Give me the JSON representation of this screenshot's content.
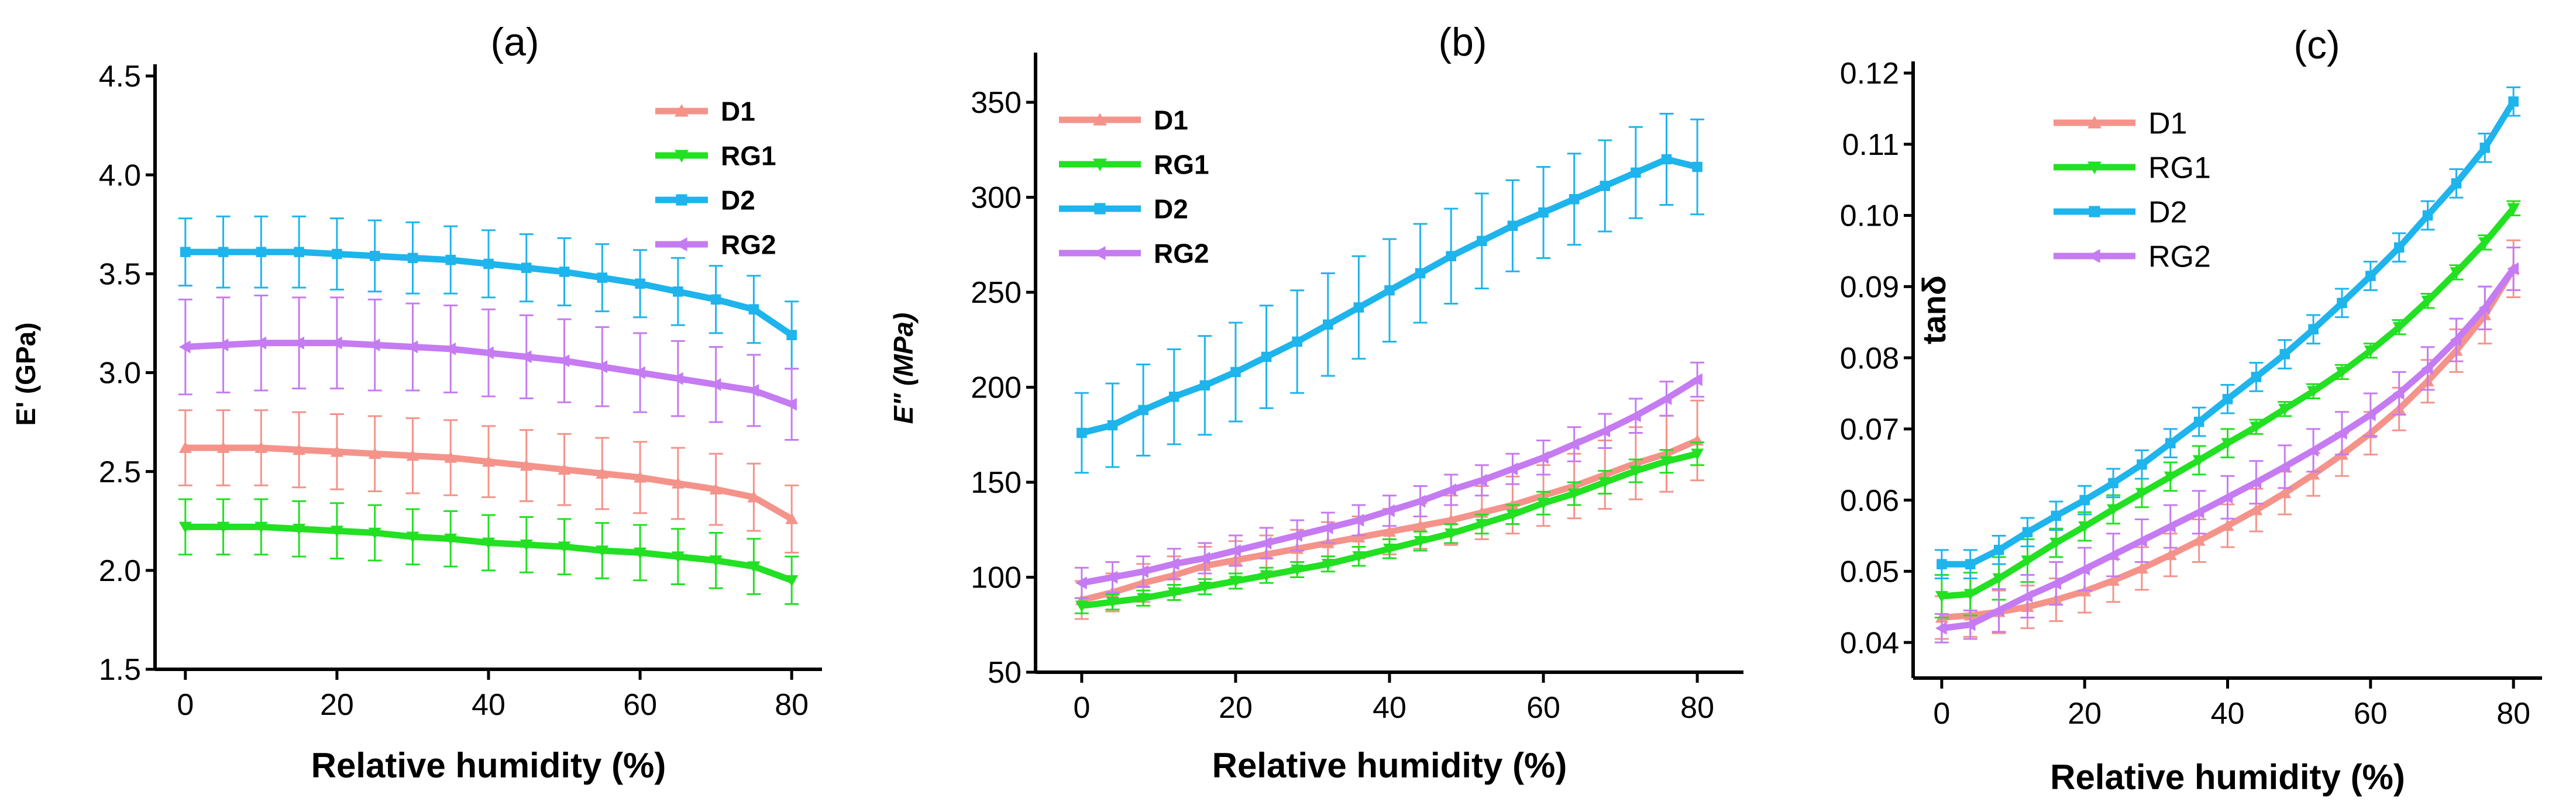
{
  "chart_data": [
    {
      "panel": "(a)",
      "type": "line",
      "xlabel": "Relative humidity (%)",
      "ylabel": "E' (GPa)",
      "xlim": [
        -4,
        84
      ],
      "ylim": [
        1.5,
        4.5
      ],
      "xticks": [
        0,
        20,
        40,
        60,
        80
      ],
      "yticks": [
        1.5,
        2.0,
        2.5,
        3.0,
        3.5,
        4.0,
        4.5
      ],
      "ytick_labels": [
        "1.5",
        "2.0",
        "2.5",
        "3.0",
        "3.5",
        "4.0",
        "4.5"
      ],
      "legend_position": "top-right",
      "legend_bold": true,
      "series": [
        {
          "name": "D1",
          "color": "#F4938A",
          "marker": "triangle-up",
          "x": [
            0,
            5,
            10,
            15,
            20,
            25,
            30,
            35,
            40,
            45,
            50,
            55,
            60,
            65,
            70,
            75,
            80
          ],
          "values": [
            2.62,
            2.62,
            2.62,
            2.61,
            2.6,
            2.59,
            2.58,
            2.57,
            2.55,
            2.53,
            2.51,
            2.49,
            2.47,
            2.44,
            2.41,
            2.37,
            2.26
          ],
          "error": [
            0.19,
            0.19,
            0.19,
            0.19,
            0.19,
            0.19,
            0.19,
            0.19,
            0.18,
            0.18,
            0.18,
            0.18,
            0.18,
            0.18,
            0.18,
            0.17,
            0.17
          ]
        },
        {
          "name": "RG1",
          "color": "#22E022",
          "marker": "triangle-down",
          "x": [
            0,
            5,
            10,
            15,
            20,
            25,
            30,
            35,
            40,
            45,
            50,
            55,
            60,
            65,
            70,
            75,
            80
          ],
          "values": [
            2.22,
            2.22,
            2.22,
            2.21,
            2.2,
            2.19,
            2.17,
            2.16,
            2.14,
            2.13,
            2.12,
            2.1,
            2.09,
            2.07,
            2.05,
            2.02,
            1.95
          ],
          "error": [
            0.14,
            0.14,
            0.14,
            0.14,
            0.14,
            0.14,
            0.14,
            0.14,
            0.14,
            0.14,
            0.14,
            0.14,
            0.14,
            0.14,
            0.14,
            0.14,
            0.12
          ]
        },
        {
          "name": "D2",
          "color": "#1EB4EC",
          "marker": "square",
          "x": [
            0,
            5,
            10,
            15,
            20,
            25,
            30,
            35,
            40,
            45,
            50,
            55,
            60,
            65,
            70,
            75,
            80
          ],
          "values": [
            3.61,
            3.61,
            3.61,
            3.61,
            3.6,
            3.59,
            3.58,
            3.57,
            3.55,
            3.53,
            3.51,
            3.48,
            3.45,
            3.41,
            3.37,
            3.32,
            3.19
          ],
          "error": [
            0.17,
            0.18,
            0.18,
            0.18,
            0.18,
            0.18,
            0.18,
            0.17,
            0.17,
            0.17,
            0.17,
            0.17,
            0.17,
            0.17,
            0.17,
            0.17,
            0.17
          ]
        },
        {
          "name": "RG2",
          "color": "#C57BF2",
          "marker": "triangle-left",
          "x": [
            0,
            5,
            10,
            15,
            20,
            25,
            30,
            35,
            40,
            45,
            50,
            55,
            60,
            65,
            70,
            75,
            80
          ],
          "values": [
            3.13,
            3.14,
            3.15,
            3.15,
            3.15,
            3.14,
            3.13,
            3.12,
            3.1,
            3.08,
            3.06,
            3.03,
            3.0,
            2.97,
            2.94,
            2.91,
            2.84
          ],
          "error": [
            0.24,
            0.24,
            0.24,
            0.23,
            0.23,
            0.23,
            0.22,
            0.22,
            0.22,
            0.21,
            0.21,
            0.2,
            0.2,
            0.19,
            0.19,
            0.18,
            0.18
          ]
        }
      ]
    },
    {
      "panel": "(b)",
      "type": "line",
      "xlabel": "Relative humidity (%)",
      "ylabel": "E\" (MPa)",
      "xlim": [
        -6,
        86
      ],
      "ylim": [
        50,
        370
      ],
      "xticks": [
        0,
        20,
        40,
        60,
        80
      ],
      "yticks": [
        50,
        100,
        150,
        200,
        250,
        300,
        350
      ],
      "ytick_labels": [
        "50",
        "100",
        "150",
        "200",
        "250",
        "300",
        "350"
      ],
      "legend_position": "top-left",
      "legend_bold": true,
      "series": [
        {
          "name": "D1",
          "color": "#F4938A",
          "marker": "triangle-up",
          "x": [
            0,
            4,
            8,
            12,
            16,
            20,
            24,
            28,
            32,
            36,
            40,
            44,
            48,
            52,
            56,
            60,
            64,
            68,
            72,
            76,
            80
          ],
          "values": [
            88,
            92,
            97,
            101,
            106,
            109,
            112,
            115,
            118,
            121,
            124,
            127,
            130,
            134,
            138,
            143,
            148,
            154,
            160,
            165,
            172
          ],
          "error": [
            10,
            10,
            10,
            10,
            10,
            10,
            10,
            10,
            11,
            11,
            12,
            12,
            13,
            14,
            15,
            16,
            17,
            18,
            19,
            20,
            21
          ]
        },
        {
          "name": "RG1",
          "color": "#22E022",
          "marker": "triangle-down",
          "x": [
            0,
            4,
            8,
            12,
            16,
            20,
            24,
            28,
            32,
            36,
            40,
            44,
            48,
            52,
            56,
            60,
            64,
            68,
            72,
            76,
            80
          ],
          "values": [
            85,
            87,
            89,
            92,
            95,
            98,
            101,
            104,
            107,
            111,
            115,
            119,
            123,
            128,
            133,
            139,
            144,
            150,
            156,
            161,
            165
          ],
          "error": [
            4,
            4,
            4,
            4,
            4,
            4,
            4,
            4,
            4,
            5,
            5,
            5,
            5,
            5,
            5,
            6,
            6,
            6,
            6,
            6,
            6
          ]
        },
        {
          "name": "D2",
          "color": "#1EB4EC",
          "marker": "square",
          "x": [
            0,
            4,
            8,
            12,
            16,
            20,
            24,
            28,
            32,
            36,
            40,
            44,
            48,
            52,
            56,
            60,
            64,
            68,
            72,
            76,
            80
          ],
          "values": [
            176,
            180,
            188,
            195,
            201,
            208,
            216,
            224,
            233,
            242,
            251,
            260,
            269,
            277,
            285,
            292,
            299,
            306,
            313,
            320,
            316
          ],
          "error": [
            21,
            22,
            24,
            25,
            26,
            26,
            27,
            27,
            27,
            27,
            27,
            26,
            25,
            25,
            24,
            24,
            24,
            24,
            24,
            24,
            25
          ]
        },
        {
          "name": "RG2",
          "color": "#C57BF2",
          "marker": "triangle-left",
          "x": [
            0,
            4,
            8,
            12,
            16,
            20,
            24,
            28,
            32,
            36,
            40,
            44,
            48,
            52,
            56,
            60,
            64,
            68,
            72,
            76,
            80
          ],
          "values": [
            97,
            100,
            103,
            107,
            110,
            114,
            118,
            122,
            126,
            130,
            135,
            140,
            146,
            151,
            157,
            163,
            170,
            177,
            185,
            194,
            204
          ],
          "error": [
            8,
            8,
            8,
            8,
            8,
            8,
            8,
            8,
            8,
            8,
            8,
            8,
            8,
            8,
            8,
            9,
            9,
            9,
            9,
            9,
            9
          ]
        }
      ]
    },
    {
      "panel": "(c)",
      "type": "line",
      "xlabel": "Relative humidity (%)",
      "ylabel": "tanδ",
      "xlim": [
        -4,
        84
      ],
      "ylim": [
        0.035,
        0.12
      ],
      "xticks": [
        0,
        20,
        40,
        60,
        80
      ],
      "yticks": [
        0.04,
        0.05,
        0.06,
        0.07,
        0.08,
        0.09,
        0.1,
        0.11,
        0.12
      ],
      "ytick_labels": [
        "0.04",
        "0.05",
        "0.06",
        "0.07",
        "0.08",
        "0.09",
        "0.10",
        "0.11",
        "0.12"
      ],
      "legend_position": "top-left",
      "legend_bold": false,
      "series": [
        {
          "name": "D1",
          "color": "#F4938A",
          "marker": "triangle-up",
          "x": [
            0,
            4,
            8,
            12,
            16,
            20,
            24,
            28,
            32,
            36,
            40,
            44,
            48,
            52,
            56,
            60,
            64,
            68,
            72,
            76,
            80
          ],
          "values": [
            0.0435,
            0.0438,
            0.0443,
            0.045,
            0.046,
            0.0472,
            0.0487,
            0.0504,
            0.0523,
            0.0543,
            0.0564,
            0.0586,
            0.061,
            0.0636,
            0.0664,
            0.0694,
            0.0728,
            0.0767,
            0.081,
            0.086,
            0.0925
          ],
          "error": [
            0.003,
            0.003,
            0.003,
            0.003,
            0.003,
            0.003,
            0.003,
            0.003,
            0.003,
            0.003,
            0.003,
            0.003,
            0.003,
            0.003,
            0.003,
            0.003,
            0.003,
            0.003,
            0.003,
            0.004,
            0.004
          ]
        },
        {
          "name": "RG1",
          "color": "#22E022",
          "marker": "triangle-down",
          "x": [
            0,
            4,
            8,
            12,
            16,
            20,
            24,
            28,
            32,
            36,
            40,
            44,
            48,
            52,
            56,
            60,
            64,
            68,
            72,
            76,
            80
          ],
          "values": [
            0.0465,
            0.0468,
            0.049,
            0.0515,
            0.054,
            0.0563,
            0.0587,
            0.061,
            0.0633,
            0.0656,
            0.068,
            0.0703,
            0.0728,
            0.0753,
            0.078,
            0.081,
            0.0843,
            0.088,
            0.092,
            0.0962,
            0.101
          ],
          "error": [
            0.003,
            0.003,
            0.003,
            0.003,
            0.002,
            0.002,
            0.002,
            0.002,
            0.002,
            0.002,
            0.002,
            0.001,
            0.001,
            0.001,
            0.001,
            0.001,
            0.001,
            0.001,
            0.001,
            0.001,
            0.001
          ]
        },
        {
          "name": "D2",
          "color": "#1EB4EC",
          "marker": "square",
          "x": [
            0,
            4,
            8,
            12,
            16,
            20,
            24,
            28,
            32,
            36,
            40,
            44,
            48,
            52,
            56,
            60,
            64,
            68,
            72,
            76,
            80
          ],
          "values": [
            0.051,
            0.051,
            0.053,
            0.0555,
            0.0578,
            0.06,
            0.0624,
            0.065,
            0.068,
            0.071,
            0.0742,
            0.0773,
            0.0805,
            0.084,
            0.0877,
            0.0915,
            0.0955,
            0.1,
            0.1045,
            0.1095,
            0.116
          ],
          "error": [
            0.002,
            0.002,
            0.002,
            0.002,
            0.002,
            0.002,
            0.002,
            0.002,
            0.002,
            0.002,
            0.002,
            0.002,
            0.002,
            0.002,
            0.002,
            0.002,
            0.002,
            0.002,
            0.002,
            0.002,
            0.002
          ]
        },
        {
          "name": "RG2",
          "color": "#C57BF2",
          "marker": "triangle-left",
          "x": [
            0,
            4,
            8,
            12,
            16,
            20,
            24,
            28,
            32,
            36,
            40,
            44,
            48,
            52,
            56,
            60,
            64,
            68,
            72,
            76,
            80
          ],
          "values": [
            0.042,
            0.0425,
            0.0445,
            0.0465,
            0.0483,
            0.0503,
            0.0523,
            0.0543,
            0.0563,
            0.0583,
            0.0604,
            0.0625,
            0.0647,
            0.067,
            0.0694,
            0.072,
            0.075,
            0.0785,
            0.0825,
            0.087,
            0.0925
          ],
          "error": [
            0.002,
            0.002,
            0.003,
            0.003,
            0.003,
            0.003,
            0.003,
            0.003,
            0.003,
            0.003,
            0.003,
            0.003,
            0.003,
            0.003,
            0.003,
            0.003,
            0.003,
            0.003,
            0.003,
            0.003,
            0.003
          ]
        }
      ]
    }
  ]
}
